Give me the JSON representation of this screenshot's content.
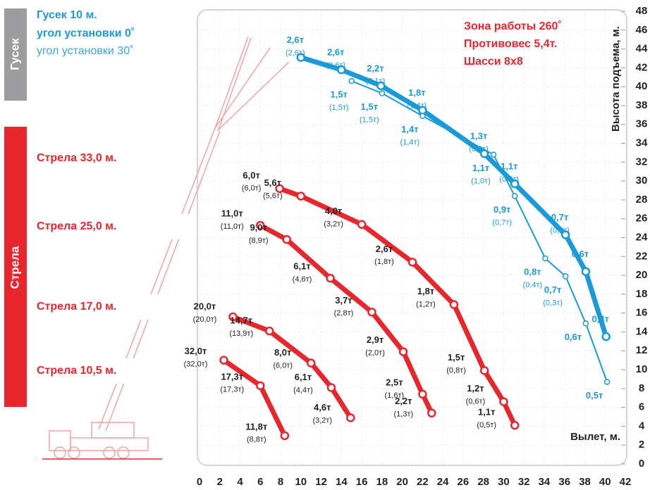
{
  "chart_data": {
    "type": "line",
    "jib_title": "Гусек 10 м.",
    "side_jib": "Гусек",
    "side_boom": "Стрела",
    "annotations": [
      "Зона работы 260˚",
      "Противовес 5,4т.",
      "Шасси 8х8"
    ],
    "ylabel": "Высота подъема, м.",
    "xlabel": "Вылет, м.",
    "xlim": [
      0,
      42
    ],
    "xticks": [
      0,
      2,
      4,
      6,
      8,
      10,
      12,
      14,
      16,
      18,
      20,
      22,
      24,
      26,
      28,
      30,
      32,
      34,
      36,
      38,
      40,
      42
    ],
    "ylim": [
      0,
      48
    ],
    "yticks": [
      0,
      2,
      4,
      6,
      8,
      10,
      12,
      14,
      16,
      18,
      20,
      22,
      24,
      26,
      28,
      30,
      32,
      34,
      36,
      38,
      40,
      42,
      44,
      46,
      48
    ],
    "grid": true,
    "series": [
      {
        "name": "угол установки 0˚",
        "color": "#1a9ad9",
        "width": 7,
        "x": [
          10.0,
          14.0,
          17.9,
          22.0,
          28.1,
          31.1,
          36.1,
          38.1,
          40.1
        ],
        "values": [
          43.1,
          41.8,
          40.1,
          37.5,
          32.9,
          29.7,
          24.3,
          20.4,
          13.5
        ],
        "labels": [
          "2,6т",
          "2,6т",
          "2,2т",
          "1,8т",
          "1,3т",
          "1,1т",
          "0,7т",
          "0,6т",
          "0,4т"
        ],
        "labels_alt": [
          "(2,6т)",
          "(2,6т)",
          "(2,1т)",
          "(1,4т)",
          "(0,8т)",
          "(0,6т)",
          "(0,3т)",
          null,
          null
        ]
      },
      {
        "name": "угол установки 30˚",
        "color": "#1a9ad9",
        "width": 2,
        "x": [
          15.0,
          18.0,
          22.0,
          29.0,
          31.1,
          34.1,
          36.1,
          38.1,
          40.2
        ],
        "values": [
          40.6,
          39.3,
          36.9,
          32.8,
          28.4,
          21.8,
          19.9,
          14.9,
          8.7
        ],
        "labels": [
          "1,5т",
          "1,5т",
          "1,4т",
          "1,1т",
          "0,9т",
          "0,8т",
          "0,7т",
          "0,6т",
          "0,5т"
        ],
        "labels_alt": [
          "(1,5т)",
          "(1,5т)",
          "(1,4т)",
          "(1,0т)",
          "(0,7т)",
          "(0,4т)",
          "(0,3т)",
          null,
          null
        ]
      },
      {
        "name": "Стрела 33,0 м.",
        "color": "#e8262d",
        "width": 7,
        "x": [
          7.9,
          10.0,
          16.0,
          21.0,
          25.1,
          28.1,
          30.0,
          31.1
        ],
        "values": [
          29.2,
          28.4,
          25.4,
          21.4,
          16.9,
          9.9,
          6.6,
          4.1
        ],
        "labels": [
          "6,0т",
          "5,6т",
          "4,0т",
          "2,6т",
          "1,8т",
          "1,5т",
          "1,2т",
          "1,1т"
        ],
        "labels_alt": [
          "(6,0т)",
          "(5,6т)",
          "(3,2т)",
          "(1,8т)",
          "(1,2т)",
          "(0,8т)",
          "(0,6т)",
          "(0,5т)"
        ]
      },
      {
        "name": "Стрела 25,0 м.",
        "color": "#e8262d",
        "width": 7,
        "x": [
          6.0,
          8.6,
          12.9,
          17.0,
          20.1,
          22.0,
          22.9
        ],
        "values": [
          25.3,
          23.8,
          19.7,
          16.1,
          11.9,
          7.4,
          5.4
        ],
        "labels": [
          "11,0т",
          "9,0т",
          "6,1т",
          "3,7т",
          "2,9т",
          "2,5т",
          "2,2т"
        ],
        "labels_alt": [
          "(11,0т)",
          "(8,9т)",
          "(4,6т)",
          "(2,8т)",
          "(2,0т)",
          "(1,6т)",
          "(1,3т)"
        ]
      },
      {
        "name": "Стрела 17,0 м.",
        "color": "#e8262d",
        "width": 7,
        "x": [
          3.3,
          6.9,
          11.0,
          13.0,
          14.9
        ],
        "values": [
          15.6,
          14.1,
          10.7,
          8.1,
          4.9
        ],
        "labels": [
          "20,0т",
          "14,7т",
          "8,0т",
          "6,1т",
          "4,6т"
        ],
        "labels_alt": [
          "(20,0т)",
          "(13,9т)",
          "(6,0т)",
          "(4,4т)",
          "(3,2т)"
        ]
      },
      {
        "name": "Стрела 10,5 м.",
        "color": "#e8262d",
        "width": 7,
        "x": [
          2.4,
          6.0,
          8.4
        ],
        "values": [
          11.0,
          8.3,
          3.0
        ],
        "labels": [
          "32,0т",
          "17,3т",
          "11,8т"
        ],
        "labels_alt": [
          "(32,0т)",
          "(17,3т)",
          "(8,8т)"
        ]
      }
    ]
  }
}
